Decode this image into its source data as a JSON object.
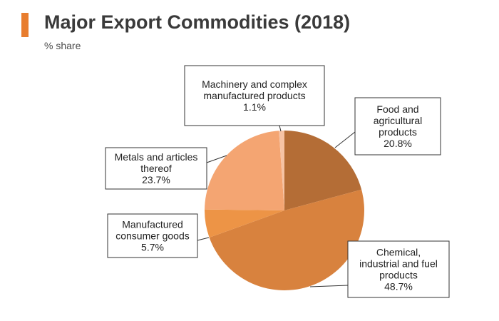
{
  "header": {
    "title": "Major Export Commodities (2018)",
    "subtitle": "% share",
    "accent_color": "#e87d2e"
  },
  "chart_data": {
    "type": "pie",
    "slices": [
      {
        "label": "Food and agricultural products",
        "label_lines": [
          "Food and",
          "agricultural",
          "products",
          "20.8%"
        ],
        "value": 20.8,
        "color": "#b46d36"
      },
      {
        "label": "Chemical, industrial and fuel products",
        "label_lines": [
          "Chemical,",
          "industrial and fuel",
          "products",
          "48.7%"
        ],
        "value": 48.7,
        "color": "#d8823e"
      },
      {
        "label": "Manufactured consumer goods",
        "label_lines": [
          "Manufactured",
          "consumer goods",
          "5.7%"
        ],
        "value": 5.7,
        "color": "#ed9446"
      },
      {
        "label": "Metals and articles thereof",
        "label_lines": [
          "Metals and articles",
          "thereof",
          "23.7%"
        ],
        "value": 23.7,
        "color": "#f4a572"
      },
      {
        "label": "Machinery and complex manufactured products",
        "label_lines": [
          "Machinery and complex",
          "manufactured products",
          "1.1%"
        ],
        "value": 1.1,
        "color": "#f6c3a4"
      }
    ]
  }
}
